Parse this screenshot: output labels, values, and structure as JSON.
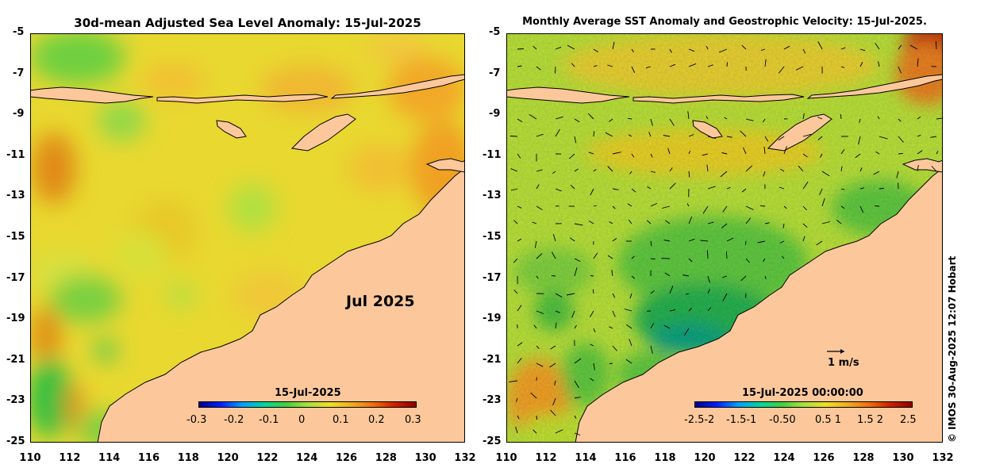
{
  "left_panel": {
    "title": "30d-mean Adjusted Sea Level Anomaly: 15-Jul-2025",
    "month_label": "Jul 2025",
    "colorbar": {
      "date": "15-Jul-2025",
      "ticks": [
        "-0.3",
        "-0.2",
        "-0.1",
        "0",
        "0.1",
        "0.2",
        "0.3"
      ],
      "range": [
        -0.3,
        0.3
      ]
    }
  },
  "right_panel": {
    "title": "Monthly Average SST Anomaly  and Geostrophic Velocity: 15-Jul-2025.",
    "reference_vector": "1 m/s",
    "colorbar": {
      "date": "15-Jul-2025 00:00:00",
      "ticks": [
        "-2.5-2",
        "-1.5-1",
        "-0.50",
        "0.5 1",
        "1.5 2",
        "2.5"
      ],
      "range": [
        -2.5,
        2.5
      ]
    }
  },
  "axes": {
    "lat_ticks": [
      "-5",
      "-7",
      "-9",
      "-11",
      "-13",
      "-15",
      "-17",
      "-19",
      "-21",
      "-23",
      "-25"
    ],
    "lon_ticks": [
      "110",
      "112",
      "114",
      "116",
      "118",
      "120",
      "122",
      "124",
      "126",
      "128",
      "130",
      "132"
    ]
  },
  "copyright": "© IMOS 30-Aug-2025 12:07 Hobart",
  "colors": {
    "land": "#fcc89b",
    "coast": "#000000",
    "ocean_positive": "#f0c820",
    "ocean_high": "#f0a020",
    "ocean_neutral": "#a8e03c",
    "ocean_negative": "#30c840"
  }
}
